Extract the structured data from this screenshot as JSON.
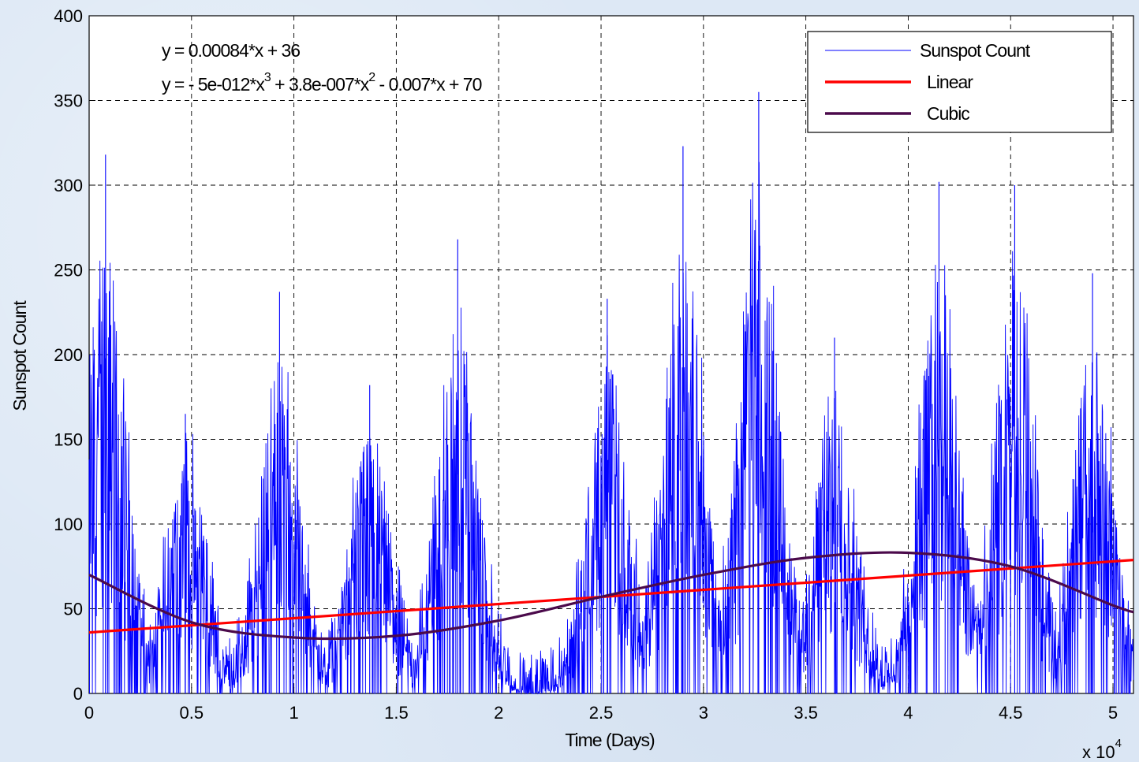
{
  "chart_data": {
    "type": "line",
    "xlabel": "Time (Days)",
    "ylabel": "Sunspot Count",
    "x_multiplier_label": "x 10",
    "x_multiplier_exp": "4",
    "xlim": [
      0,
      5.1
    ],
    "ylim": [
      0,
      400
    ],
    "x_ticks": [
      "0",
      "0.5",
      "1",
      "1.5",
      "2",
      "2.5",
      "3",
      "3.5",
      "4",
      "4.5",
      "5"
    ],
    "y_ticks": [
      "0",
      "50",
      "100",
      "150",
      "200",
      "250",
      "300",
      "350",
      "400"
    ],
    "grid": true,
    "legend_position": "top-right",
    "annotations": {
      "linear_eq": "y = 0.00084*x + 36",
      "cubic_eq_part1": "y = - 5e-012*x",
      "cubic_eq_exp1": "3",
      "cubic_eq_part2": " + 3.8e-007*x",
      "cubic_eq_exp2": "2",
      "cubic_eq_part3": " - 0.007*x + 70"
    },
    "series": [
      {
        "name": "Sunspot Count",
        "color": "#0000ff",
        "x_scaled": [
          0.08,
          0.47,
          0.93,
          1.37,
          1.8,
          2.53,
          2.9,
          3.27,
          3.64,
          4.15,
          4.52,
          4.9
        ],
        "cycle_peaks": [
          318,
          165,
          237,
          182,
          268,
          233,
          323,
          355,
          210,
          302,
          300,
          248
        ],
        "cycle_peak_x_scaled": [
          0.08,
          0.47,
          0.93,
          1.37,
          1.8,
          2.53,
          2.9,
          3.27,
          3.64,
          4.15,
          4.52,
          4.9
        ]
      },
      {
        "name": "Linear",
        "color": "#ff0000",
        "x_scaled": [
          0,
          5.1
        ],
        "values": [
          36,
          78.8
        ]
      },
      {
        "name": "Cubic",
        "color": "#4b0a4b",
        "x_scaled": [
          0,
          0.5,
          1.0,
          1.5,
          2.0,
          2.5,
          3.0,
          3.5,
          4.0,
          4.5,
          5.0,
          5.1
        ],
        "values": [
          70,
          42,
          33,
          34,
          43,
          57,
          70,
          80,
          83,
          75,
          52,
          48
        ]
      }
    ]
  }
}
